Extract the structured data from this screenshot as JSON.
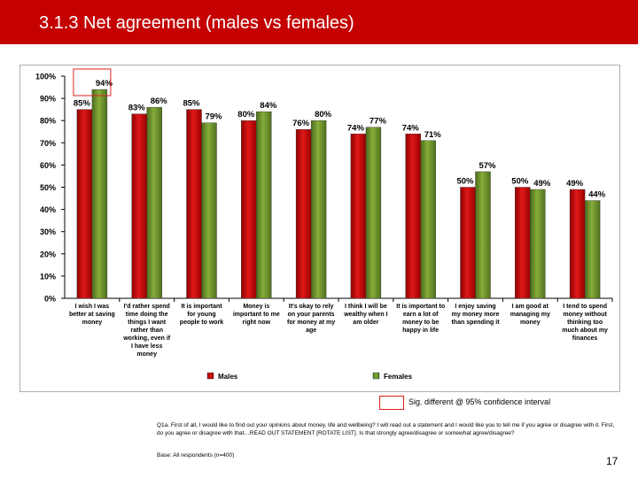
{
  "slide": {
    "title": "3.1.3 Net agreement (males vs females)",
    "page_number": "17",
    "sig_legend_label": "Sig. different @ 95% confidence interval",
    "footnote": "Q1a. First of all, I would like to find out your opinions about money, life and wellbeing? I will read out a statement and I would like you to tell me if you agree or disagree with it.  First, do you agree or disagree with that…READ OUT STATEMENT [ROTATE LIST].  Is that strongly agree/disagree or somewhat agree/disagree?",
    "base": "Base: All respondents (n=400)"
  },
  "colors": {
    "title_bar": "#c40000",
    "males": "#c00000",
    "females": "#6e8f2c",
    "sig_box": "#e02020"
  },
  "chart_data": {
    "type": "bar",
    "title": "",
    "xlabel": "",
    "ylabel": "",
    "ylim": [
      0,
      100
    ],
    "yticks": [
      "0%",
      "10%",
      "20%",
      "30%",
      "40%",
      "50%",
      "60%",
      "70%",
      "80%",
      "90%",
      "100%"
    ],
    "grid": false,
    "legend_position": "bottom",
    "categories": [
      [
        "I wish I was",
        "better at saving",
        "money"
      ],
      [
        "I'd rather spend",
        "time doing the",
        "things I want",
        "rather than",
        "working, even if",
        "I have less",
        "money"
      ],
      [
        "It is important",
        "for young",
        "people to work"
      ],
      [
        "Money is",
        "important to me",
        "right now"
      ],
      [
        "It's okay to rely",
        "on your parents",
        "for money at my",
        "age"
      ],
      [
        "I think I will be",
        "wealthy when I",
        "am older"
      ],
      [
        "It is important to",
        "earn a lot of",
        "money to be",
        "happy in life"
      ],
      [
        "I enjoy saving",
        "my money more",
        "than spending it"
      ],
      [
        "I am good at",
        "managing my",
        "money"
      ],
      [
        "I tend to spend",
        "money without",
        "thinking too",
        "much about my",
        "finances"
      ]
    ],
    "series": [
      {
        "name": "Males",
        "values": [
          85,
          83,
          85,
          80,
          76,
          74,
          74,
          50,
          50,
          49
        ],
        "labels": [
          "85%",
          "83%",
          "85%",
          "80%",
          "76%",
          "74%",
          "74%",
          "50%",
          "50%",
          "49%"
        ]
      },
      {
        "name": "Females",
        "values": [
          94,
          86,
          79,
          84,
          80,
          77,
          71,
          57,
          49,
          44
        ],
        "labels": [
          "94%",
          "86%",
          "79%",
          "84%",
          "80%",
          "77%",
          "71%",
          "57%",
          "49%",
          "44%"
        ]
      }
    ],
    "significant": [
      {
        "series": "Females",
        "category_index": 0
      }
    ]
  }
}
